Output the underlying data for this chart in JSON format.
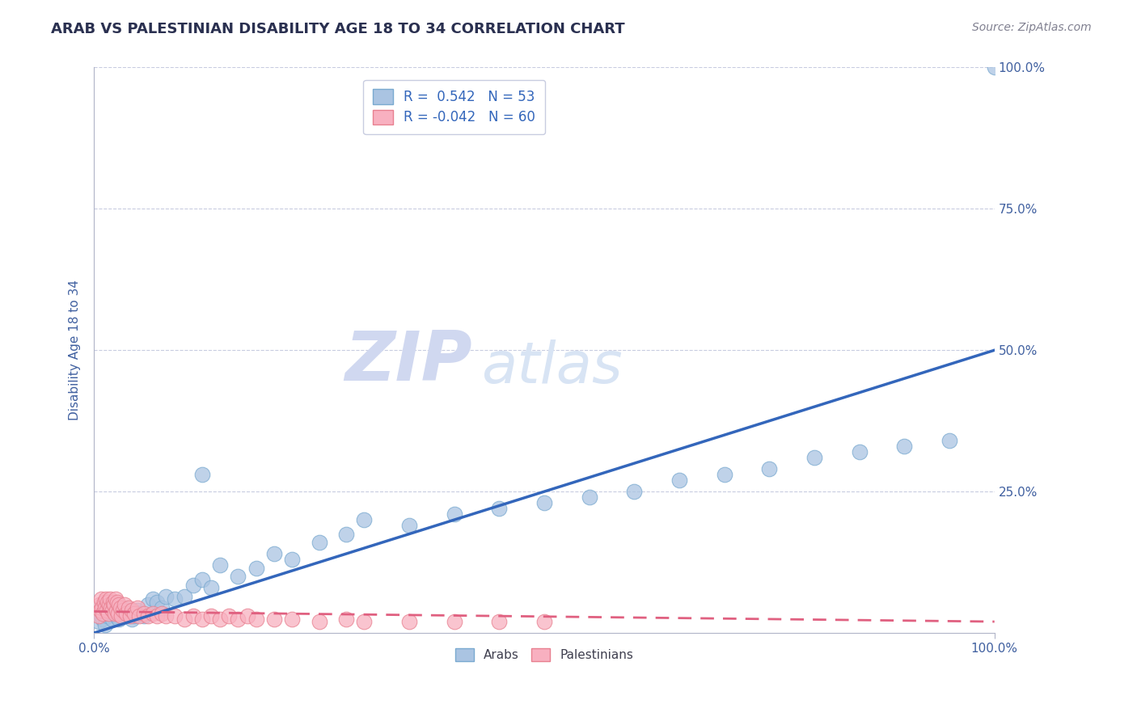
{
  "title": "ARAB VS PALESTINIAN DISABILITY AGE 18 TO 34 CORRELATION CHART",
  "source": "Source: ZipAtlas.com",
  "ylabel": "Disability Age 18 to 34",
  "arab_R": 0.542,
  "arab_N": 53,
  "palestinian_R": -0.042,
  "palestinian_N": 60,
  "arab_color": "#aac4e2",
  "arab_edge_color": "#7aaad0",
  "arab_line_color": "#3366bb",
  "palestinian_color": "#f8b0c0",
  "palestinian_edge_color": "#e88090",
  "palestinian_line_color": "#e06080",
  "background_color": "#ffffff",
  "grid_color": "#c8cce0",
  "title_color": "#2a3050",
  "axis_label_color": "#4060a0",
  "legend_R_color": "#3366bb",
  "watermark_zip_color": "#d0d8f0",
  "watermark_atlas_color": "#d8e4f4",
  "arab_x": [
    0.005,
    0.008,
    0.01,
    0.012,
    0.015,
    0.018,
    0.02,
    0.022,
    0.025,
    0.028,
    0.03,
    0.032,
    0.035,
    0.038,
    0.04,
    0.042,
    0.045,
    0.048,
    0.05,
    0.055,
    0.06,
    0.065,
    0.07,
    0.075,
    0.08,
    0.09,
    0.1,
    0.11,
    0.12,
    0.13,
    0.14,
    0.16,
    0.18,
    0.2,
    0.22,
    0.25,
    0.28,
    0.3,
    0.35,
    0.4,
    0.45,
    0.5,
    0.55,
    0.6,
    0.65,
    0.7,
    0.75,
    0.8,
    0.85,
    0.9,
    0.95,
    0.12,
    1.0
  ],
  "arab_y": [
    0.02,
    0.03,
    0.025,
    0.015,
    0.03,
    0.04,
    0.025,
    0.035,
    0.03,
    0.025,
    0.035,
    0.045,
    0.03,
    0.04,
    0.035,
    0.025,
    0.03,
    0.04,
    0.035,
    0.03,
    0.05,
    0.06,
    0.055,
    0.045,
    0.065,
    0.06,
    0.065,
    0.085,
    0.095,
    0.08,
    0.12,
    0.1,
    0.115,
    0.14,
    0.13,
    0.16,
    0.175,
    0.2,
    0.19,
    0.21,
    0.22,
    0.23,
    0.24,
    0.25,
    0.27,
    0.28,
    0.29,
    0.31,
    0.32,
    0.33,
    0.34,
    0.28,
    1.0
  ],
  "palestinian_x": [
    0.005,
    0.006,
    0.007,
    0.008,
    0.009,
    0.01,
    0.011,
    0.012,
    0.013,
    0.014,
    0.015,
    0.016,
    0.017,
    0.018,
    0.019,
    0.02,
    0.021,
    0.022,
    0.023,
    0.024,
    0.025,
    0.026,
    0.027,
    0.028,
    0.029,
    0.03,
    0.032,
    0.034,
    0.036,
    0.038,
    0.04,
    0.042,
    0.045,
    0.048,
    0.05,
    0.055,
    0.06,
    0.065,
    0.07,
    0.075,
    0.08,
    0.09,
    0.1,
    0.11,
    0.12,
    0.13,
    0.14,
    0.15,
    0.16,
    0.17,
    0.18,
    0.2,
    0.22,
    0.25,
    0.28,
    0.3,
    0.35,
    0.4,
    0.45,
    0.5
  ],
  "palestinian_y": [
    0.03,
    0.05,
    0.04,
    0.06,
    0.045,
    0.035,
    0.055,
    0.045,
    0.06,
    0.04,
    0.055,
    0.035,
    0.05,
    0.06,
    0.045,
    0.04,
    0.055,
    0.05,
    0.035,
    0.06,
    0.04,
    0.055,
    0.035,
    0.05,
    0.045,
    0.03,
    0.04,
    0.05,
    0.035,
    0.045,
    0.03,
    0.04,
    0.035,
    0.045,
    0.03,
    0.035,
    0.03,
    0.035,
    0.03,
    0.035,
    0.03,
    0.03,
    0.025,
    0.03,
    0.025,
    0.03,
    0.025,
    0.03,
    0.025,
    0.03,
    0.025,
    0.025,
    0.025,
    0.02,
    0.025,
    0.02,
    0.02,
    0.02,
    0.02,
    0.02
  ],
  "arab_trend_x": [
    0.0,
    1.0
  ],
  "arab_trend_y": [
    0.0,
    0.5
  ],
  "pal_trend_x": [
    0.0,
    1.0
  ],
  "pal_trend_y": [
    0.038,
    0.02
  ],
  "xlim": [
    0.0,
    1.0
  ],
  "ylim": [
    0.0,
    1.0
  ],
  "yticks": [
    0.0,
    0.25,
    0.5,
    0.75,
    1.0
  ],
  "ytick_labels": [
    "",
    "25.0%",
    "50.0%",
    "75.0%",
    "100.0%"
  ],
  "xtick_labels": [
    "0.0%",
    "100.0%"
  ]
}
